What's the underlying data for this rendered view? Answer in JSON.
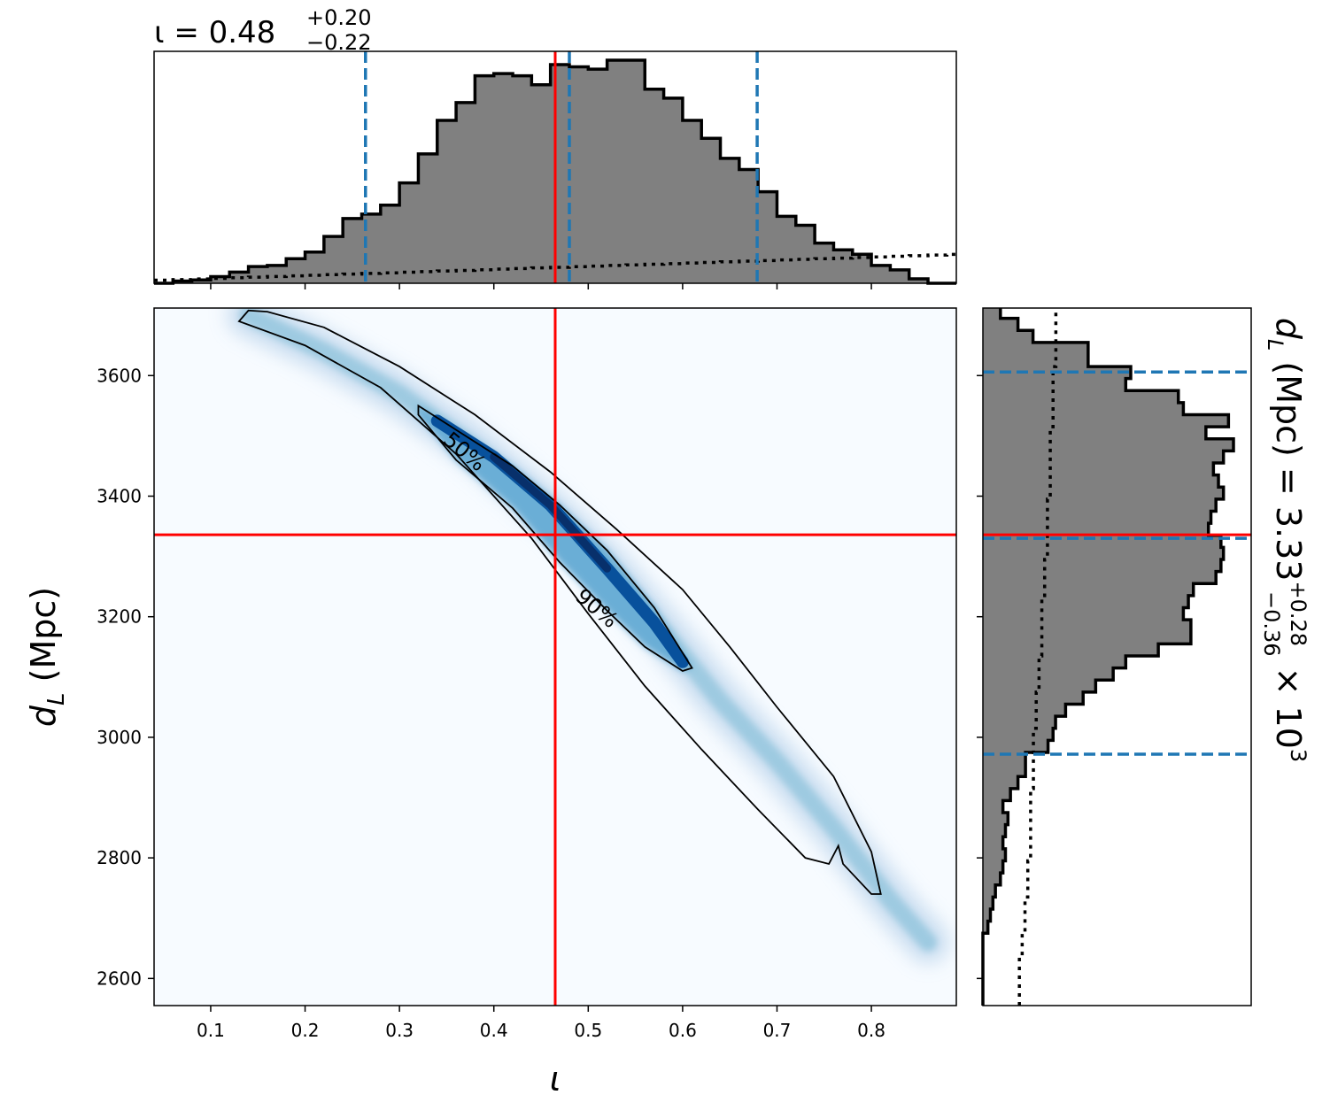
{
  "chart_data": [
    {
      "type": "histogram",
      "panel": "top-marginal",
      "title": {
        "main": "ι = 0.48",
        "sup": "+0.20",
        "sub": "−0.22"
      },
      "x": [
        0.04,
        0.06,
        0.08,
        0.1,
        0.12,
        0.14,
        0.16,
        0.18,
        0.2,
        0.22,
        0.24,
        0.26,
        0.28,
        0.3,
        0.32,
        0.34,
        0.36,
        0.38,
        0.4,
        0.42,
        0.44,
        0.46,
        0.48,
        0.5,
        0.52,
        0.54,
        0.56,
        0.58,
        0.6,
        0.62,
        0.64,
        0.66,
        0.68,
        0.7,
        0.72,
        0.74,
        0.76,
        0.78,
        0.8,
        0.82,
        0.84,
        0.86,
        0.88
      ],
      "values": [
        0.0,
        0.01,
        0.015,
        0.03,
        0.05,
        0.075,
        0.08,
        0.11,
        0.14,
        0.21,
        0.29,
        0.31,
        0.35,
        0.45,
        0.58,
        0.73,
        0.81,
        0.93,
        0.94,
        0.93,
        0.89,
        0.98,
        0.97,
        0.96,
        1.0,
        1.0,
        0.87,
        0.83,
        0.73,
        0.65,
        0.56,
        0.51,
        0.41,
        0.3,
        0.26,
        0.18,
        0.15,
        0.13,
        0.08,
        0.06,
        0.02,
        0.0,
        0.0
      ],
      "prior": [
        0.025,
        0.03,
        0.035,
        0.04,
        0.045,
        0.05,
        0.055,
        0.06,
        0.065,
        0.07,
        0.075,
        0.08,
        0.085,
        0.09,
        0.095,
        0.1,
        0.105,
        0.11,
        0.115,
        0.12,
        0.125,
        0.13,
        0.135,
        0.14,
        0.145,
        0.15,
        0.155,
        0.16,
        0.165,
        0.17,
        0.175,
        0.18,
        0.185,
        0.19,
        0.195,
        0.2,
        0.205,
        0.21,
        0.215,
        0.22,
        0.225,
        0.23,
        0.235
      ],
      "quantile_lines": [
        0.264,
        0.48,
        0.679
      ],
      "true_value": 0.465,
      "xlim": [
        0.04,
        0.89
      ]
    },
    {
      "type": "heatmap",
      "panel": "joint",
      "xlabel": "ι",
      "ylabel_main": "d",
      "ylabel_sub": "L",
      "ylabel_unit": " (Mpc)",
      "xlim": [
        0.04,
        0.89
      ],
      "ylim": [
        2555,
        3712
      ],
      "xticks": [
        "0.1",
        "0.2",
        "0.3",
        "0.4",
        "0.5",
        "0.6",
        "0.7",
        "0.8"
      ],
      "yticks": [
        "2600",
        "2800",
        "3000",
        "3200",
        "3400",
        "3600"
      ],
      "contour_labels": [
        "50%",
        "90%"
      ],
      "contour_90": [
        [
          0.14,
          3708
        ],
        [
          0.16,
          3706
        ],
        [
          0.22,
          3680
        ],
        [
          0.3,
          3615
        ],
        [
          0.38,
          3535
        ],
        [
          0.46,
          3440
        ],
        [
          0.53,
          3345
        ],
        [
          0.6,
          3245
        ],
        [
          0.65,
          3150
        ],
        [
          0.7,
          3050
        ],
        [
          0.76,
          2935
        ],
        [
          0.8,
          2810
        ],
        [
          0.81,
          2740
        ],
        [
          0.8,
          2740
        ],
        [
          0.77,
          2790
        ],
        [
          0.765,
          2820
        ],
        [
          0.755,
          2790
        ],
        [
          0.73,
          2800
        ],
        [
          0.68,
          2880
        ],
        [
          0.62,
          2980
        ],
        [
          0.56,
          3085
        ],
        [
          0.5,
          3205
        ],
        [
          0.44,
          3330
        ],
        [
          0.36,
          3470
        ],
        [
          0.28,
          3580
        ],
        [
          0.2,
          3650
        ],
        [
          0.13,
          3690
        ],
        [
          0.14,
          3708
        ]
      ],
      "contour_50": [
        [
          0.32,
          3550
        ],
        [
          0.36,
          3510
        ],
        [
          0.42,
          3450
        ],
        [
          0.47,
          3385
        ],
        [
          0.52,
          3310
        ],
        [
          0.57,
          3215
        ],
        [
          0.61,
          3115
        ],
        [
          0.6,
          3110
        ],
        [
          0.56,
          3150
        ],
        [
          0.52,
          3210
        ],
        [
          0.47,
          3290
        ],
        [
          0.42,
          3380
        ],
        [
          0.36,
          3460
        ],
        [
          0.32,
          3535
        ],
        [
          0.32,
          3550
        ]
      ],
      "density_ridge": [
        [
          0.14,
          3700
        ],
        [
          0.22,
          3640
        ],
        [
          0.3,
          3570
        ],
        [
          0.38,
          3480
        ],
        [
          0.46,
          3375
        ],
        [
          0.52,
          3285
        ],
        [
          0.58,
          3175
        ],
        [
          0.64,
          3060
        ],
        [
          0.7,
          2960
        ],
        [
          0.76,
          2850
        ],
        [
          0.82,
          2730
        ],
        [
          0.86,
          2660
        ]
      ],
      "true_point": [
        0.465,
        3336
      ],
      "true_lines_color": "#ff0000"
    },
    {
      "type": "histogram",
      "panel": "right-marginal",
      "orientation": "horizontal",
      "label_main": "d",
      "label_sub": "L",
      "label_rest": " (Mpc) = 3.33",
      "label_sup": "+0.28",
      "label_sub2": "−0.36",
      "label_tail": " × 10",
      "label_exp": "3",
      "bins": [
        2555,
        2575,
        2595,
        2615,
        2635,
        2655,
        2675,
        2695,
        2715,
        2735,
        2755,
        2775,
        2795,
        2815,
        2835,
        2855,
        2875,
        2895,
        2915,
        2935,
        2955,
        2975,
        2995,
        3015,
        3035,
        3055,
        3075,
        3095,
        3115,
        3135,
        3155,
        3175,
        3195,
        3215,
        3235,
        3255,
        3275,
        3295,
        3315,
        3335,
        3355,
        3375,
        3395,
        3415,
        3435,
        3455,
        3475,
        3495,
        3515,
        3535,
        3555,
        3575,
        3595,
        3615,
        3635,
        3655,
        3675,
        3695
      ],
      "values": [
        0.0,
        0.0,
        0.0,
        0.0,
        0.0,
        0.0,
        0.02,
        0.03,
        0.04,
        0.05,
        0.07,
        0.08,
        0.09,
        0.08,
        0.09,
        0.1,
        0.08,
        0.11,
        0.14,
        0.17,
        0.17,
        0.26,
        0.28,
        0.29,
        0.33,
        0.4,
        0.45,
        0.52,
        0.57,
        0.7,
        0.83,
        0.83,
        0.8,
        0.82,
        0.84,
        0.93,
        0.95,
        0.96,
        0.95,
        0.9,
        0.91,
        0.93,
        0.96,
        0.94,
        0.92,
        0.96,
        1.0,
        0.89,
        0.98,
        0.8,
        0.78,
        0.57,
        0.59,
        0.42,
        0.42,
        0.2,
        0.14,
        0.07
      ],
      "prior": [
        0.13,
        0.13,
        0.13,
        0.13,
        0.14,
        0.14,
        0.15,
        0.15,
        0.15,
        0.16,
        0.16,
        0.16,
        0.17,
        0.17,
        0.17,
        0.17,
        0.17,
        0.17,
        0.18,
        0.18,
        0.18,
        0.18,
        0.18,
        0.19,
        0.19,
        0.19,
        0.2,
        0.2,
        0.2,
        0.21,
        0.21,
        0.21,
        0.21,
        0.21,
        0.22,
        0.22,
        0.22,
        0.23,
        0.23,
        0.23,
        0.23,
        0.23,
        0.24,
        0.24,
        0.24,
        0.24,
        0.24,
        0.24,
        0.25,
        0.25,
        0.25,
        0.25,
        0.25,
        0.26,
        0.26,
        0.26,
        0.26,
        0.26
      ],
      "quantile_lines": [
        2972,
        3330,
        3606
      ],
      "true_value": 3336
    }
  ],
  "colors": {
    "hist_fill": "#808080",
    "hist_edge": "#000000",
    "quantile": "#1f77b4",
    "truth": "#ff0000",
    "cmap_low": "#f7fbff",
    "cmap_mid": "#6baed6",
    "cmap_high": "#08306b"
  }
}
